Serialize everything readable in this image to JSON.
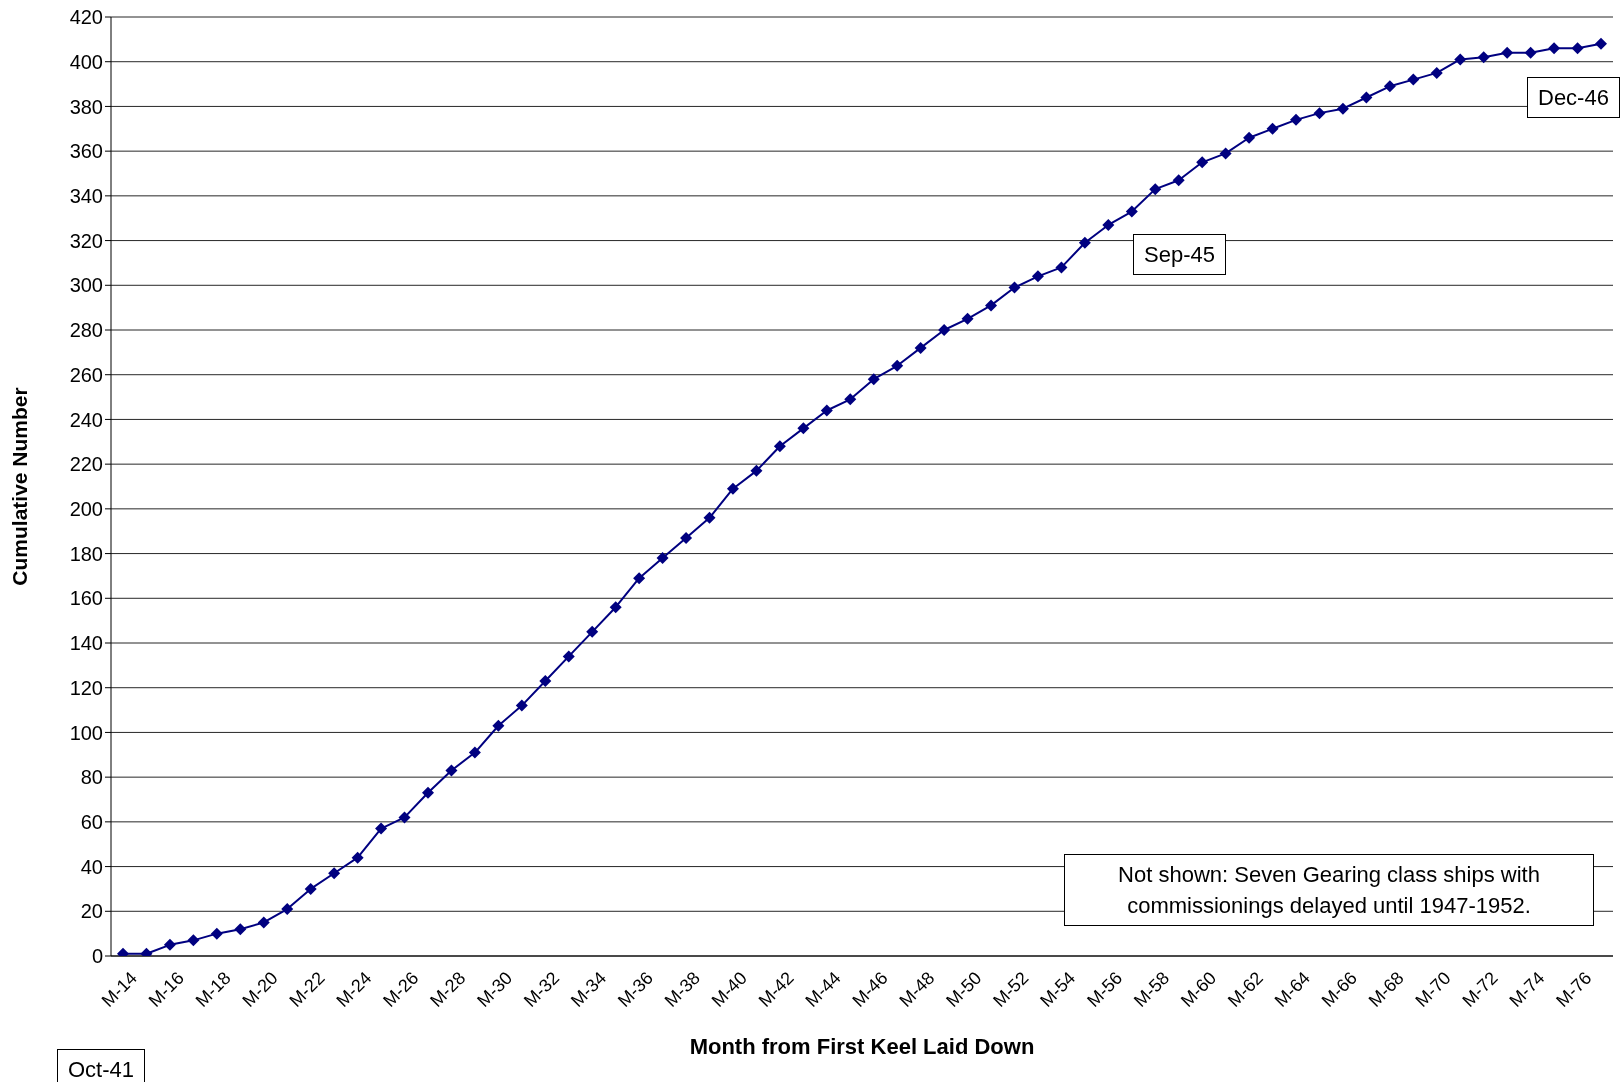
{
  "chart_data": {
    "type": "line",
    "xlabel": "Month from First Keel Laid Down",
    "ylabel": "Cumulative Number",
    "categories": [
      "M-14",
      null,
      "M-16",
      null,
      "M-18",
      null,
      "M-20",
      null,
      "M-22",
      null,
      "M-24",
      null,
      "M-26",
      null,
      "M-28",
      null,
      "M-30",
      null,
      "M-32",
      null,
      "M-34",
      null,
      "M-36",
      null,
      "M-38",
      null,
      "M-40",
      null,
      "M-42",
      null,
      "M-44",
      null,
      "M-46",
      null,
      "M-48",
      null,
      "M-50",
      null,
      "M-52",
      null,
      "M-54",
      null,
      "M-56",
      null,
      "M-58",
      null,
      "M-60",
      null,
      "M-62",
      null,
      "M-64",
      null,
      "M-66",
      null,
      "M-68",
      null,
      "M-70",
      null,
      "M-72",
      null,
      "M-74",
      null,
      "M-76",
      null
    ],
    "series": [
      {
        "color": "#000080",
        "values": [
          1,
          1,
          5,
          7,
          10,
          12,
          15,
          21,
          30,
          37,
          44,
          57,
          62,
          73,
          83,
          91,
          103,
          112,
          123,
          134,
          145,
          156,
          169,
          178,
          187,
          196,
          209,
          217,
          228,
          236,
          244,
          249,
          258,
          264,
          272,
          280,
          285,
          291,
          299,
          304,
          308,
          319,
          327,
          333,
          343,
          347,
          355,
          359,
          366,
          370,
          374,
          377,
          379,
          384,
          389,
          392,
          395,
          401,
          402,
          404,
          404,
          406,
          406,
          408
        ]
      }
    ],
    "ylim": [
      0,
      420
    ],
    "yticks": [
      0,
      20,
      40,
      60,
      80,
      100,
      120,
      140,
      160,
      180,
      200,
      220,
      240,
      260,
      280,
      300,
      320,
      340,
      360,
      380,
      400,
      420
    ],
    "grid": "y",
    "marker": "diamond",
    "line_style": "solid",
    "annotations": [
      "Oct-41",
      "Sep-45",
      "Dec-46",
      "Not shown: Seven Gearing class ships with commissionings delayed until 1947-1952."
    ]
  }
}
